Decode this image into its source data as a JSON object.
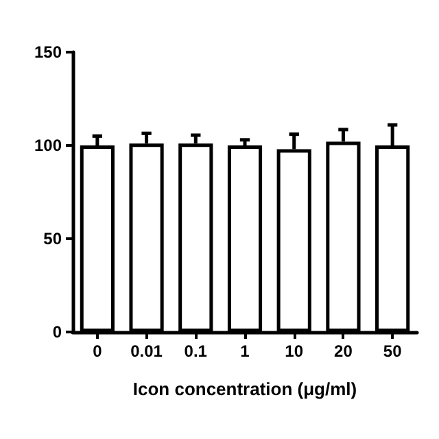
{
  "chart_data": {
    "type": "bar",
    "xlabel": "Icon concentration (μg/ml)",
    "categories": [
      "0",
      "0.01",
      "0.1",
      "1",
      "10",
      "20",
      "50"
    ],
    "values": [
      100,
      101,
      101,
      100,
      98,
      102,
      100
    ],
    "errors": [
      [
        100,
        105
      ],
      [
        101,
        106.5
      ],
      [
        101,
        105.5
      ],
      [
        100,
        103
      ],
      [
        98,
        106
      ],
      [
        102,
        108.5
      ],
      [
        100,
        111
      ]
    ],
    "color": "#ffffff",
    "ylim": [
      0,
      150
    ],
    "yticks": [
      0,
      50,
      100,
      150
    ],
    "grid": false
  }
}
